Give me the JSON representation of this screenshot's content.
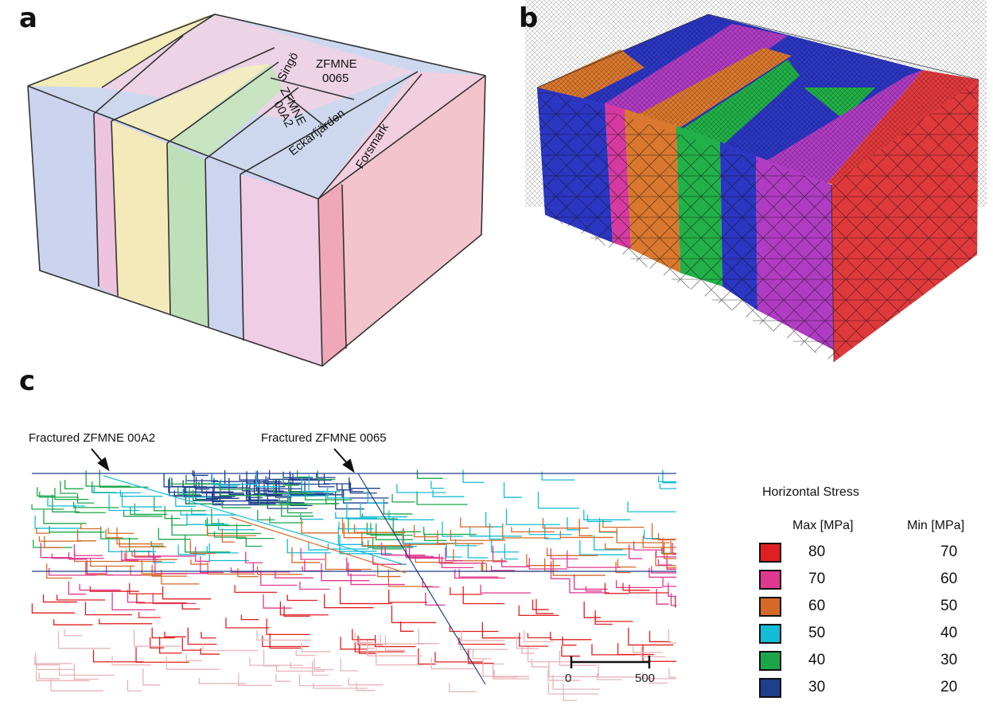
{
  "panels": {
    "a": {
      "letter": "a",
      "faults": {
        "singo": "Singö",
        "zfmne0065_line1": "ZFMNE",
        "zfmne0065_line2": "0065",
        "zfmne00a2_line1": "ZFMNE",
        "zfmne00a2_line2": "00A2",
        "eckarfjarden": "Eckarfjärden",
        "forsmark": "Forsmark"
      },
      "colors": {
        "blue": "#c9d3ec",
        "pink": "#efc6de",
        "yellow": "#f2eab8",
        "green": "#b9dfb6",
        "rose": "#f4c6cc"
      }
    },
    "b": {
      "letter": "b",
      "colors": {
        "blue": "#2b36c2",
        "magenta": "#b03cc3",
        "orange": "#d9782e",
        "green": "#22b048",
        "red": "#e0393c",
        "pink": "#d63aa0"
      }
    },
    "c": {
      "letter": "c",
      "annotations": {
        "left": "Fractured ZFMNE 00A2",
        "right": "Fractured ZFMNE 0065"
      },
      "scale_bar": {
        "start": "0",
        "end": "500"
      },
      "legend": {
        "title": "Horizontal Stress",
        "max_header": "Max [MPa]",
        "min_header": "Min [MPa]",
        "rows": [
          {
            "color": "#e02020",
            "max": "80",
            "min": "70"
          },
          {
            "color": "#e0378f",
            "max": "70",
            "min": "60"
          },
          {
            "color": "#d46a26",
            "max": "60",
            "min": "50"
          },
          {
            "color": "#14bcd6",
            "max": "50",
            "min": "40"
          },
          {
            "color": "#1ca64a",
            "max": "40",
            "min": "30"
          },
          {
            "color": "#1f3e8c",
            "max": "30",
            "min": "20"
          }
        ]
      }
    }
  }
}
